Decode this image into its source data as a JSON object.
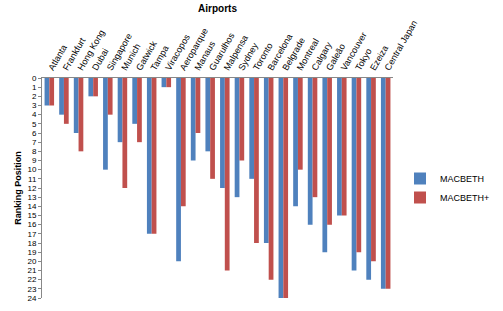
{
  "chart_data": {
    "type": "bar",
    "x_label": "Airports",
    "y_label": "Ranking Position",
    "categories": [
      "Atlanta",
      "Frankfurt",
      "Hong Kong",
      "Dubai",
      "Singapore",
      "Munich",
      "Gatwick",
      "Tampa",
      "Viracopos",
      "Aeroparque",
      "Manaus",
      "Guarulhos",
      "Malpensa",
      "Sydney",
      "Toronto",
      "Barcelona",
      "Belgrade",
      "Montreal",
      "Calgary",
      "Galeão",
      "Vancouver",
      "Tokyo",
      "Ezeiza",
      "Central Japan"
    ],
    "series": [
      {
        "name": "MACBETH",
        "color": "#4f81bd",
        "values": [
          3,
          4,
          6,
          2,
          10,
          7,
          5,
          17,
          1,
          20,
          9,
          8,
          12,
          13,
          11,
          18,
          24,
          14,
          16,
          19,
          15,
          21,
          22,
          23
        ]
      },
      {
        "name": "MACBETH+",
        "color": "#c0504d",
        "values": [
          3,
          5,
          8,
          2,
          4,
          12,
          7,
          17,
          1,
          14,
          6,
          11,
          21,
          9,
          18,
          22,
          24,
          10,
          13,
          16,
          15,
          19,
          20,
          23
        ]
      }
    ],
    "ylim": [
      0,
      24
    ],
    "yticks": [
      0,
      1,
      2,
      3,
      4,
      5,
      6,
      7,
      8,
      9,
      10,
      11,
      12,
      13,
      14,
      15,
      16,
      17,
      18,
      19,
      20,
      21,
      22,
      23,
      24
    ],
    "grid": false,
    "legend": "right"
  }
}
